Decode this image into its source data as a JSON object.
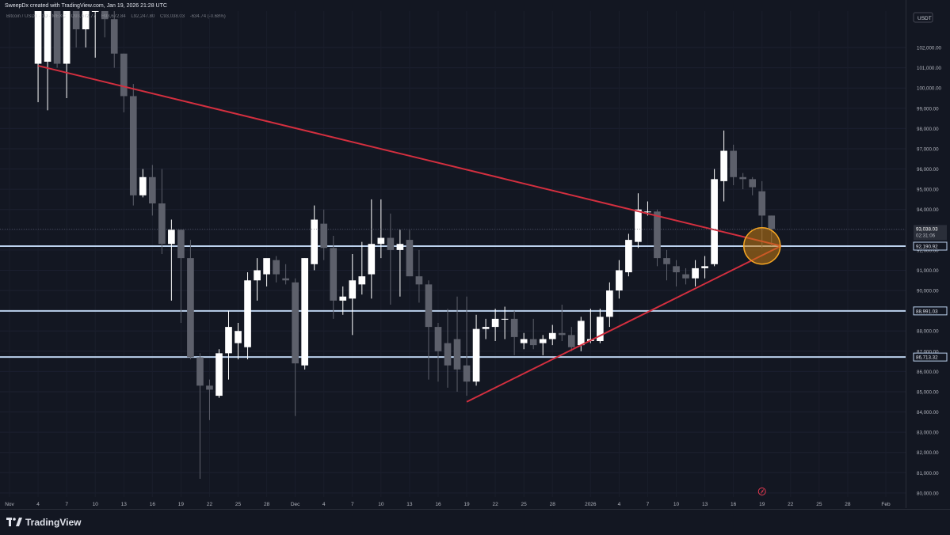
{
  "header": {
    "credit": "SweepDx created with TradingView.com, Jan 19, 2026 21:28 UTC"
  },
  "legend": {
    "symbol": "Bitcoin / USDT · 1D · MEXC",
    "open": "O93,672.77",
    "high": "H93,672.84",
    "low": "L92,247.80",
    "close": "C93,038.03",
    "change": "-634.74 (-0.68%)"
  },
  "footer": {
    "brand": "TradingView"
  },
  "colors": {
    "background": "#131722",
    "bull": "#ffffff",
    "bear": "#5d606b",
    "trendline": "#d32f3f",
    "level": "#bcd2ee",
    "highlight_fill": "#c77c12",
    "highlight_stroke": "#f5a623"
  },
  "chart_data": {
    "type": "candlestick",
    "currency_label": "USDT",
    "ylim": [
      79800,
      103800
    ],
    "y_ticks": [
      {
        "value": 80000,
        "label": "80,000.00"
      },
      {
        "value": 81000,
        "label": "81,000.00"
      },
      {
        "value": 82000,
        "label": "82,000.00"
      },
      {
        "value": 83000,
        "label": "83,000.00"
      },
      {
        "value": 84000,
        "label": "84,000.00"
      },
      {
        "value": 85000,
        "label": "85,000.00"
      },
      {
        "value": 86000,
        "label": "86,000.00"
      },
      {
        "value": 87000,
        "label": "87,000.00"
      },
      {
        "value": 88000,
        "label": "88,000.00"
      },
      {
        "value": 89000,
        "label": "89,000.00"
      },
      {
        "value": 90000,
        "label": "90,000.00"
      },
      {
        "value": 91000,
        "label": "91,000.00"
      },
      {
        "value": 92000,
        "label": "92,000.00"
      },
      {
        "value": 93000,
        "label": "93,000.00"
      },
      {
        "value": 94000,
        "label": "94,000.00"
      },
      {
        "value": 95000,
        "label": "95,000.00"
      },
      {
        "value": 96000,
        "label": "96,000.00"
      },
      {
        "value": 97000,
        "label": "97,000.00"
      },
      {
        "value": 98000,
        "label": "98,000.00"
      },
      {
        "value": 99000,
        "label": "99,000.00"
      },
      {
        "value": 100000,
        "label": "100,000.00"
      },
      {
        "value": 101000,
        "label": "101,000.00"
      },
      {
        "value": 102000,
        "label": "102,000.00"
      }
    ],
    "x_ticks": [
      {
        "date": "2025-11-01",
        "label": "Nov"
      },
      {
        "date": "2025-11-04",
        "label": "4"
      },
      {
        "date": "2025-11-07",
        "label": "7"
      },
      {
        "date": "2025-11-10",
        "label": "10"
      },
      {
        "date": "2025-11-13",
        "label": "13"
      },
      {
        "date": "2025-11-16",
        "label": "16"
      },
      {
        "date": "2025-11-19",
        "label": "19"
      },
      {
        "date": "2025-11-22",
        "label": "22"
      },
      {
        "date": "2025-11-25",
        "label": "25"
      },
      {
        "date": "2025-11-28",
        "label": "28"
      },
      {
        "date": "2025-12-01",
        "label": "Dec"
      },
      {
        "date": "2025-12-04",
        "label": "4"
      },
      {
        "date": "2025-12-07",
        "label": "7"
      },
      {
        "date": "2025-12-10",
        "label": "10"
      },
      {
        "date": "2025-12-13",
        "label": "13"
      },
      {
        "date": "2025-12-16",
        "label": "16"
      },
      {
        "date": "2025-12-19",
        "label": "19"
      },
      {
        "date": "2025-12-22",
        "label": "22"
      },
      {
        "date": "2025-12-25",
        "label": "25"
      },
      {
        "date": "2025-12-28",
        "label": "28"
      },
      {
        "date": "2026-01-01",
        "label": "2026"
      },
      {
        "date": "2026-01-04",
        "label": "4"
      },
      {
        "date": "2026-01-07",
        "label": "7"
      },
      {
        "date": "2026-01-10",
        "label": "10"
      },
      {
        "date": "2026-01-13",
        "label": "13"
      },
      {
        "date": "2026-01-16",
        "label": "16"
      },
      {
        "date": "2026-01-19",
        "label": "19"
      },
      {
        "date": "2026-01-22",
        "label": "22"
      },
      {
        "date": "2026-01-25",
        "label": "25"
      },
      {
        "date": "2026-01-28",
        "label": "28"
      },
      {
        "date": "2026-02-01",
        "label": "Feb"
      }
    ],
    "x_domain": [
      "2025-11-01",
      "2026-02-01"
    ],
    "candles": [
      {
        "date": "2025-11-04",
        "o": 101200,
        "h": 103800,
        "l": 99300,
        "c": 103800
      },
      {
        "date": "2025-11-05",
        "o": 101300,
        "h": 103800,
        "l": 98900,
        "c": 103800
      },
      {
        "date": "2025-11-06",
        "o": 103800,
        "h": 103800,
        "l": 101000,
        "c": 101200
      },
      {
        "date": "2025-11-07",
        "o": 101200,
        "h": 103800,
        "l": 99500,
        "c": 103800
      },
      {
        "date": "2025-11-08",
        "o": 103800,
        "h": 103800,
        "l": 102000,
        "c": 102900
      },
      {
        "date": "2025-11-09",
        "o": 102900,
        "h": 103800,
        "l": 102000,
        "c": 103800
      },
      {
        "date": "2025-11-10",
        "o": 103800,
        "h": 103800,
        "l": 101500,
        "c": 103800
      },
      {
        "date": "2025-11-11",
        "o": 103800,
        "h": 103800,
        "l": 102500,
        "c": 103400
      },
      {
        "date": "2025-11-12",
        "o": 103400,
        "h": 103800,
        "l": 101000,
        "c": 101700
      },
      {
        "date": "2025-11-13",
        "o": 101700,
        "h": 101700,
        "l": 98800,
        "c": 99600
      },
      {
        "date": "2025-11-14",
        "o": 99600,
        "h": 100200,
        "l": 94200,
        "c": 94700
      },
      {
        "date": "2025-11-15",
        "o": 94700,
        "h": 96000,
        "l": 94600,
        "c": 95600
      },
      {
        "date": "2025-11-16",
        "o": 95600,
        "h": 96200,
        "l": 93700,
        "c": 94300
      },
      {
        "date": "2025-11-17",
        "o": 94300,
        "h": 96000,
        "l": 91800,
        "c": 92300
      },
      {
        "date": "2025-11-18",
        "o": 92300,
        "h": 93500,
        "l": 89500,
        "c": 93000
      },
      {
        "date": "2025-11-19",
        "o": 93000,
        "h": 93000,
        "l": 88400,
        "c": 91600
      },
      {
        "date": "2025-11-20",
        "o": 91600,
        "h": 92500,
        "l": 86600,
        "c": 86700
      },
      {
        "date": "2025-11-21",
        "o": 86700,
        "h": 86900,
        "l": 80700,
        "c": 85300
      },
      {
        "date": "2025-11-22",
        "o": 85300,
        "h": 85600,
        "l": 83600,
        "c": 85100
      },
      {
        "date": "2025-11-23",
        "o": 84800,
        "h": 87100,
        "l": 84700,
        "c": 86900
      },
      {
        "date": "2025-11-24",
        "o": 86900,
        "h": 89000,
        "l": 85600,
        "c": 88200
      },
      {
        "date": "2025-11-25",
        "o": 87400,
        "h": 88400,
        "l": 86600,
        "c": 88000
      },
      {
        "date": "2025-11-26",
        "o": 87200,
        "h": 90900,
        "l": 86600,
        "c": 90500
      },
      {
        "date": "2025-11-27",
        "o": 90500,
        "h": 91600,
        "l": 89500,
        "c": 91000
      },
      {
        "date": "2025-11-28",
        "o": 90800,
        "h": 91400,
        "l": 90200,
        "c": 91600
      },
      {
        "date": "2025-11-29",
        "o": 91500,
        "h": 91700,
        "l": 90400,
        "c": 90800
      },
      {
        "date": "2025-11-30",
        "o": 90600,
        "h": 91300,
        "l": 90300,
        "c": 90500
      },
      {
        "date": "2025-12-01",
        "o": 90400,
        "h": 90600,
        "l": 83800,
        "c": 86400
      },
      {
        "date": "2025-12-02",
        "o": 86300,
        "h": 91600,
        "l": 86100,
        "c": 91600
      },
      {
        "date": "2025-12-03",
        "o": 91300,
        "h": 94200,
        "l": 91000,
        "c": 93500
      },
      {
        "date": "2025-12-04",
        "o": 93300,
        "h": 94000,
        "l": 91500,
        "c": 92100
      },
      {
        "date": "2025-12-05",
        "o": 92100,
        "h": 92700,
        "l": 88600,
        "c": 89500
      },
      {
        "date": "2025-12-06",
        "o": 89500,
        "h": 90200,
        "l": 88800,
        "c": 89700
      },
      {
        "date": "2025-12-07",
        "o": 89600,
        "h": 91800,
        "l": 87800,
        "c": 90500
      },
      {
        "date": "2025-12-08",
        "o": 90300,
        "h": 92400,
        "l": 89800,
        "c": 90700
      },
      {
        "date": "2025-12-09",
        "o": 90800,
        "h": 94500,
        "l": 89600,
        "c": 92300
      },
      {
        "date": "2025-12-10",
        "o": 92300,
        "h": 94500,
        "l": 91600,
        "c": 92600
      },
      {
        "date": "2025-12-11",
        "o": 92600,
        "h": 93800,
        "l": 89300,
        "c": 92000
      },
      {
        "date": "2025-12-12",
        "o": 92000,
        "h": 93000,
        "l": 89700,
        "c": 92300
      },
      {
        "date": "2025-12-13",
        "o": 92500,
        "h": 93000,
        "l": 90800,
        "c": 90700
      },
      {
        "date": "2025-12-14",
        "o": 90700,
        "h": 92000,
        "l": 89400,
        "c": 90300
      },
      {
        "date": "2025-12-15",
        "o": 90300,
        "h": 90500,
        "l": 85600,
        "c": 88200
      },
      {
        "date": "2025-12-16",
        "o": 88200,
        "h": 88400,
        "l": 85500,
        "c": 87000
      },
      {
        "date": "2025-12-17",
        "o": 87400,
        "h": 89100,
        "l": 85200,
        "c": 86300
      },
      {
        "date": "2025-12-18",
        "o": 87600,
        "h": 89700,
        "l": 85000,
        "c": 86100
      },
      {
        "date": "2025-12-19",
        "o": 86300,
        "h": 89700,
        "l": 84800,
        "c": 85500
      },
      {
        "date": "2025-12-20",
        "o": 85500,
        "h": 88800,
        "l": 85300,
        "c": 88100
      },
      {
        "date": "2025-12-21",
        "o": 88100,
        "h": 88600,
        "l": 87600,
        "c": 88200
      },
      {
        "date": "2025-12-22",
        "o": 88200,
        "h": 89100,
        "l": 87500,
        "c": 88600
      },
      {
        "date": "2025-12-23",
        "o": 88600,
        "h": 89200,
        "l": 87600,
        "c": 88600
      },
      {
        "date": "2025-12-24",
        "o": 88600,
        "h": 89000,
        "l": 86800,
        "c": 87700
      },
      {
        "date": "2025-12-25",
        "o": 87400,
        "h": 87900,
        "l": 87100,
        "c": 87600
      },
      {
        "date": "2025-12-26",
        "o": 87600,
        "h": 88600,
        "l": 87100,
        "c": 87300
      },
      {
        "date": "2025-12-27",
        "o": 87400,
        "h": 87800,
        "l": 86800,
        "c": 87600
      },
      {
        "date": "2025-12-28",
        "o": 87600,
        "h": 88300,
        "l": 87300,
        "c": 87900
      },
      {
        "date": "2025-12-29",
        "o": 87900,
        "h": 89300,
        "l": 87500,
        "c": 87800
      },
      {
        "date": "2025-12-30",
        "o": 87800,
        "h": 88200,
        "l": 87000,
        "c": 87200
      },
      {
        "date": "2025-12-31",
        "o": 87300,
        "h": 88700,
        "l": 87000,
        "c": 88500
      },
      {
        "date": "2026-01-01",
        "o": 87500,
        "h": 89100,
        "l": 87400,
        "c": 87600
      },
      {
        "date": "2026-01-02",
        "o": 87500,
        "h": 89100,
        "l": 87400,
        "c": 88700
      },
      {
        "date": "2026-01-03",
        "o": 88700,
        "h": 90400,
        "l": 88200,
        "c": 90000
      },
      {
        "date": "2026-01-04",
        "o": 90000,
        "h": 91500,
        "l": 89600,
        "c": 91000
      },
      {
        "date": "2026-01-05",
        "o": 90900,
        "h": 92800,
        "l": 90700,
        "c": 92500
      },
      {
        "date": "2026-01-06",
        "o": 92400,
        "h": 94800,
        "l": 92100,
        "c": 94000
      },
      {
        "date": "2026-01-07",
        "o": 93900,
        "h": 94400,
        "l": 93700,
        "c": 93900
      },
      {
        "date": "2026-01-08",
        "o": 93900,
        "h": 94000,
        "l": 91200,
        "c": 91600
      },
      {
        "date": "2026-01-09",
        "o": 91600,
        "h": 92000,
        "l": 90500,
        "c": 91300
      },
      {
        "date": "2026-01-10",
        "o": 91200,
        "h": 91500,
        "l": 90200,
        "c": 90900
      },
      {
        "date": "2026-01-11",
        "o": 90800,
        "h": 91100,
        "l": 90300,
        "c": 90600
      },
      {
        "date": "2026-01-12",
        "o": 90600,
        "h": 91500,
        "l": 90200,
        "c": 91100
      },
      {
        "date": "2026-01-13",
        "o": 91100,
        "h": 91700,
        "l": 90600,
        "c": 91200
      },
      {
        "date": "2026-01-14",
        "o": 91300,
        "h": 96000,
        "l": 91200,
        "c": 95500
      },
      {
        "date": "2026-01-15",
        "o": 95400,
        "h": 97900,
        "l": 94400,
        "c": 96900
      },
      {
        "date": "2026-01-16",
        "o": 96900,
        "h": 97200,
        "l": 95200,
        "c": 95600
      },
      {
        "date": "2026-01-17",
        "o": 95600,
        "h": 95800,
        "l": 95000,
        "c": 95500
      },
      {
        "date": "2026-01-18",
        "o": 95500,
        "h": 95600,
        "l": 94700,
        "c": 95100
      },
      {
        "date": "2026-01-19",
        "o": 94900,
        "h": 95400,
        "l": 92100,
        "c": 93700
      },
      {
        "date": "2026-01-20",
        "o": 93700,
        "h": 93700,
        "l": 92200,
        "c": 93038
      }
    ],
    "trendlines": [
      {
        "name": "descending resistance",
        "from": {
          "date": "2025-11-04",
          "price": 101100
        },
        "to": {
          "date": "2026-01-21",
          "price": 92200
        }
      },
      {
        "name": "ascending support",
        "from": {
          "date": "2025-12-19",
          "price": 84500
        },
        "to": {
          "date": "2026-01-21",
          "price": 92200
        }
      }
    ],
    "horizontal_levels": [
      {
        "price": 92190.92,
        "label": "92,190.92"
      },
      {
        "price": 88991.03,
        "label": "88,991.03"
      },
      {
        "price": 86713.32,
        "label": "86,713.32"
      }
    ],
    "last_price": {
      "price": 93038.03,
      "label": "93,038.03",
      "countdown": "02:31:06"
    },
    "highlight_circle": {
      "date": "2026-01-21",
      "price": 92200
    }
  }
}
